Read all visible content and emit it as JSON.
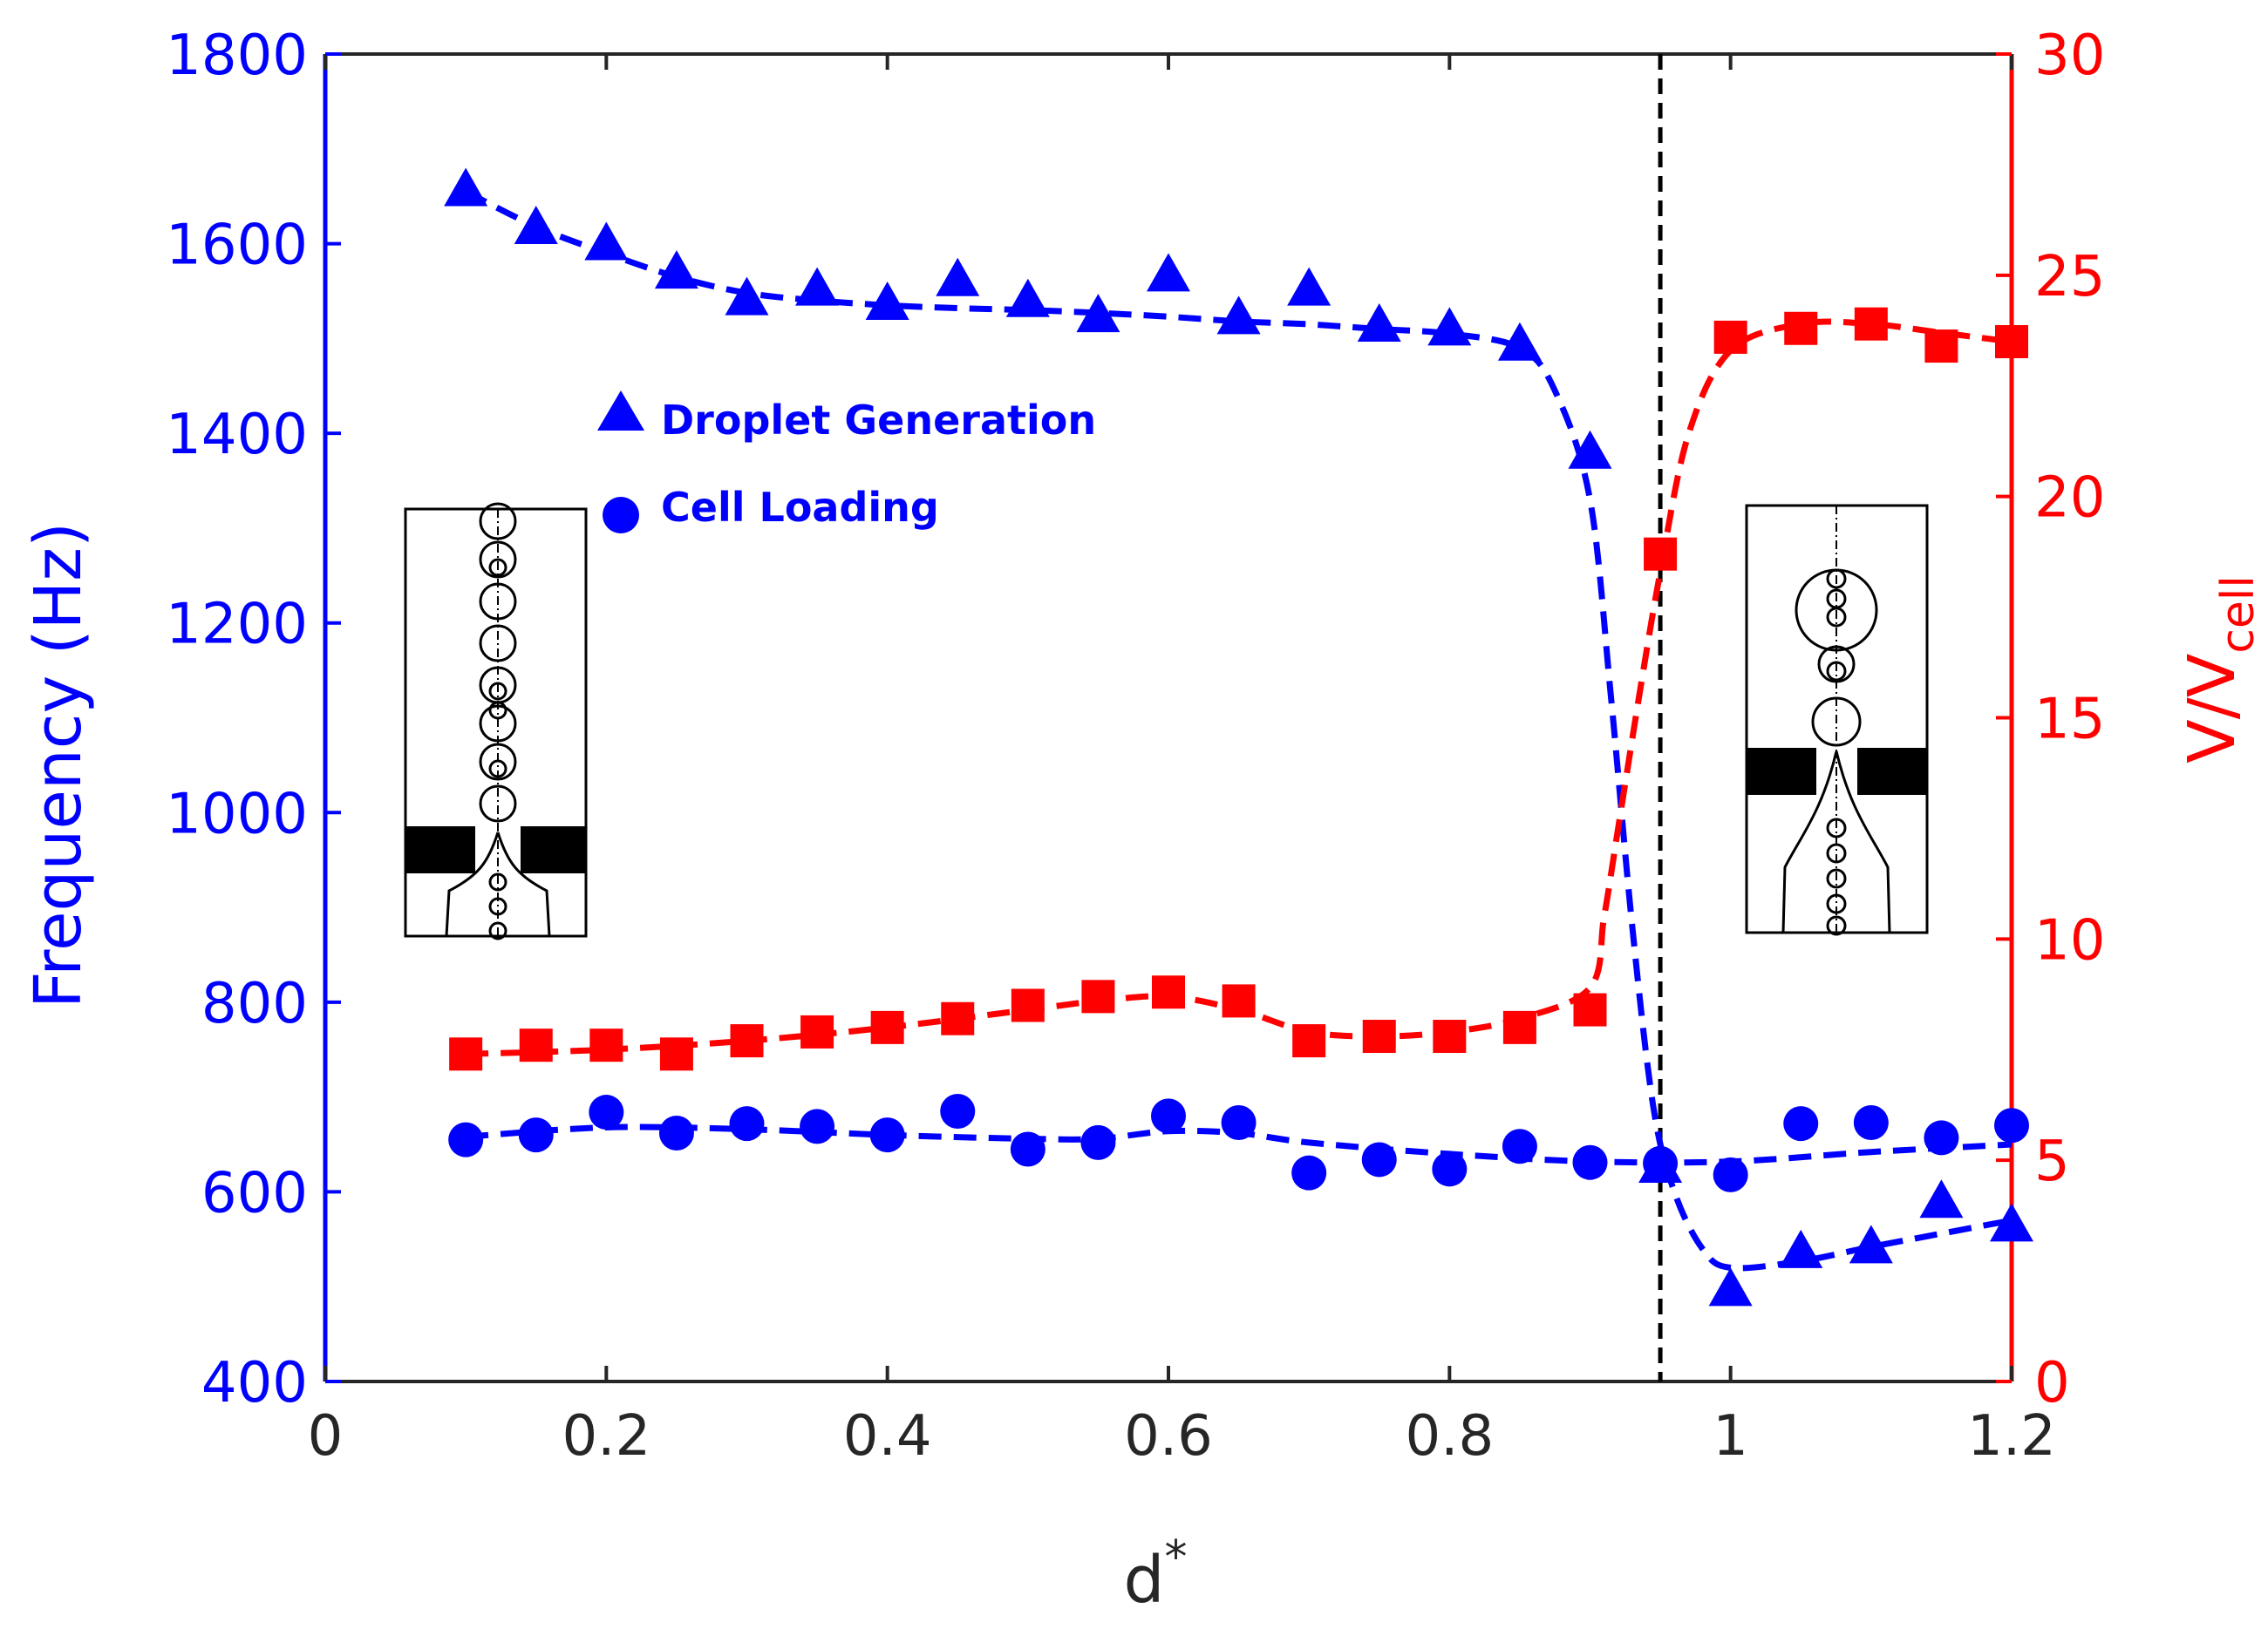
{
  "chart_data": {
    "type": "line",
    "xlabel": "d",
    "xlabel_superscript": "*",
    "ylabel_left": "Frequency (Hz)",
    "ylabel_right_main": "V/V",
    "ylabel_right_subscript": "cell",
    "xlim": [
      0,
      1.2
    ],
    "ylim_left": [
      400,
      1800
    ],
    "ylim_right": [
      0,
      30
    ],
    "x_ticks": [
      "0",
      "0.2",
      "0.4",
      "0.6",
      "0.8",
      "1",
      "1.2"
    ],
    "y_left_ticks": [
      "400",
      "600",
      "800",
      "1000",
      "1200",
      "1400",
      "1600",
      "1800"
    ],
    "y_right_ticks": [
      "0",
      "5",
      "10",
      "15",
      "20",
      "25",
      "30"
    ],
    "vertical_line_x": 0.95,
    "colors": {
      "left_axis": "#0000ff",
      "right_axis": "#ff0000",
      "vline": "#000000"
    },
    "series": [
      {
        "name": "Droplet Generation",
        "axis": "left",
        "marker": "triangle",
        "color": "#0000ff",
        "x": [
          0.1,
          0.15,
          0.2,
          0.25,
          0.3,
          0.35,
          0.4,
          0.45,
          0.5,
          0.55,
          0.6,
          0.65,
          0.7,
          0.75,
          0.8,
          0.85,
          0.9,
          0.95,
          1.0,
          1.05,
          1.1,
          1.15,
          1.2
        ],
        "values": [
          1655,
          1615,
          1598,
          1568,
          1540,
          1550,
          1535,
          1560,
          1538,
          1522,
          1565,
          1520,
          1550,
          1512,
          1508,
          1492,
          1378,
          625,
          495,
          535,
          540,
          588,
          563
        ]
      },
      {
        "name": "Cell Loading",
        "axis": "left",
        "marker": "circle",
        "color": "#0000ff",
        "x": [
          0.1,
          0.15,
          0.2,
          0.25,
          0.3,
          0.35,
          0.4,
          0.45,
          0.5,
          0.55,
          0.6,
          0.65,
          0.7,
          0.75,
          0.8,
          0.85,
          0.9,
          0.95,
          1.0,
          1.05,
          1.1,
          1.15,
          1.2
        ],
        "values": [
          655,
          660,
          684,
          662,
          672,
          669,
          660,
          685,
          645,
          652,
          680,
          673,
          620,
          634,
          624,
          648,
          631,
          630,
          618,
          672,
          673,
          657,
          670
        ]
      },
      {
        "name": "V/V_cell",
        "axis": "right",
        "marker": "square",
        "color": "#ff0000",
        "x": [
          0.1,
          0.15,
          0.2,
          0.25,
          0.3,
          0.35,
          0.4,
          0.45,
          0.5,
          0.55,
          0.6,
          0.65,
          0.7,
          0.75,
          0.8,
          0.85,
          0.9,
          0.95,
          1.0,
          1.05,
          1.1,
          1.15,
          1.2
        ],
        "values": [
          7.4,
          7.6,
          7.6,
          7.4,
          7.7,
          7.9,
          8.0,
          8.2,
          8.5,
          8.7,
          8.8,
          8.6,
          7.7,
          7.8,
          7.8,
          8.0,
          8.4,
          18.7,
          23.6,
          23.8,
          23.9,
          23.4,
          23.5
        ]
      }
    ],
    "fit_curves": {
      "droplet_generation": {
        "x": [
          0.1,
          0.15,
          0.2,
          0.25,
          0.3,
          0.35,
          0.4,
          0.45,
          0.5,
          0.55,
          0.6,
          0.65,
          0.7,
          0.75,
          0.8,
          0.85,
          0.875,
          0.9,
          0.915,
          0.93,
          0.945,
          0.96,
          0.98,
          1.0,
          1.05,
          1.1,
          1.15,
          1.2
        ],
        "values": [
          1655,
          1618,
          1590,
          1565,
          1548,
          1540,
          1535,
          1532,
          1530,
          1527,
          1523,
          1518,
          1515,
          1510,
          1505,
          1490,
          1445,
          1330,
          1120,
          880,
          690,
          600,
          540,
          520,
          527,
          542,
          556,
          570
        ]
      },
      "cell_loading": {
        "x": [
          0.1,
          0.2,
          0.3,
          0.4,
          0.5,
          0.55,
          0.6,
          0.65,
          0.7,
          0.8,
          0.9,
          1.0,
          1.1,
          1.2
        ],
        "values": [
          658,
          668,
          666,
          660,
          656,
          656,
          664,
          662,
          652,
          640,
          632,
          632,
          642,
          650
        ]
      },
      "volume_ratio": {
        "x": [
          0.1,
          0.2,
          0.3,
          0.4,
          0.5,
          0.55,
          0.6,
          0.65,
          0.7,
          0.75,
          0.8,
          0.85,
          0.9,
          0.91,
          0.92,
          0.935,
          0.95,
          0.97,
          1.0,
          1.05,
          1.1,
          1.15,
          1.2
        ],
        "values": [
          7.4,
          7.5,
          7.7,
          8.0,
          8.4,
          8.6,
          8.7,
          8.4,
          7.9,
          7.8,
          7.9,
          8.2,
          8.9,
          10.5,
          12.5,
          15.5,
          18.3,
          21.4,
          23.3,
          23.9,
          23.9,
          23.7,
          23.5
        ]
      }
    },
    "legend": {
      "position": "upper-left inside axes",
      "entries": [
        "Droplet Generation",
        "Cell Loading"
      ]
    },
    "insets": [
      {
        "name": "small droplets schematic",
        "position": "left"
      },
      {
        "name": "large droplets schematic",
        "position": "right"
      }
    ]
  }
}
